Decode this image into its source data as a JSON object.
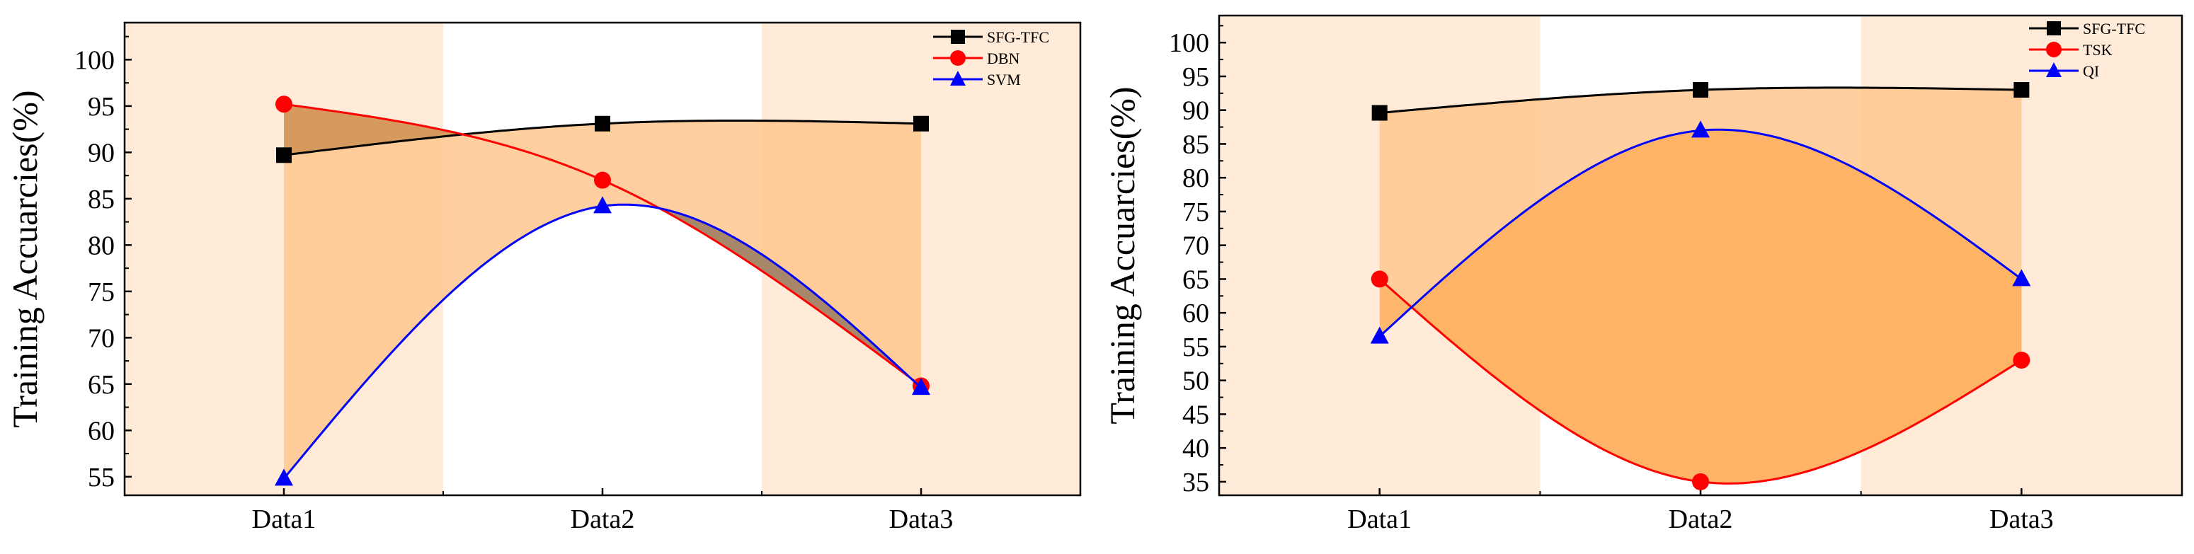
{
  "chart_data": [
    {
      "type": "line",
      "title": "",
      "xlabel": "",
      "ylabel": "Training Accuarcies(%)",
      "categories": [
        "Data1",
        "Data2",
        "Data3"
      ],
      "ylim": [
        53,
        104
      ],
      "yticks": [
        55,
        60,
        65,
        70,
        75,
        80,
        85,
        90,
        95,
        100
      ],
      "grid": false,
      "legend": "top-right",
      "series": [
        {
          "name": "SFG-TFC",
          "values": [
            89.7,
            93.1,
            93.1
          ],
          "color": "#000000",
          "marker": "square"
        },
        {
          "name": "DBN",
          "values": [
            95.2,
            87.0,
            64.8
          ],
          "color": "#ff0000",
          "marker": "circle"
        },
        {
          "name": "SVM",
          "values": [
            54.8,
            84.2,
            64.6
          ],
          "color": "#0000ff",
          "marker": "triangle"
        }
      ],
      "colors": {
        "band": "#ffebd8",
        "fill_light": "#ffc78f",
        "fill_dark": "#d69a5f",
        "fill_grey": "#a8866a"
      }
    },
    {
      "type": "line",
      "title": "",
      "xlabel": "",
      "ylabel": "Training Accuarcies(%)",
      "categories": [
        "Data1",
        "Data2",
        "Data3"
      ],
      "ylim": [
        33,
        104
      ],
      "yticks": [
        35,
        40,
        45,
        50,
        55,
        60,
        65,
        70,
        75,
        80,
        85,
        90,
        95,
        100
      ],
      "grid": false,
      "legend": "top-right",
      "series": [
        {
          "name": "SFG-TFC",
          "values": [
            89.6,
            93.0,
            93.0
          ],
          "color": "#000000",
          "marker": "square"
        },
        {
          "name": "TSK",
          "values": [
            65.0,
            35.0,
            53.0
          ],
          "color": "#ff0000",
          "marker": "circle"
        },
        {
          "name": "QI",
          "values": [
            56.5,
            87.0,
            65.0
          ],
          "color": "#0000ff",
          "marker": "triangle"
        }
      ],
      "colors": {
        "band": "#ffebd8",
        "fill_light": "#ffc78f",
        "fill_dark": "#ffae5c",
        "fill_grey": "#ffa64d"
      }
    }
  ]
}
